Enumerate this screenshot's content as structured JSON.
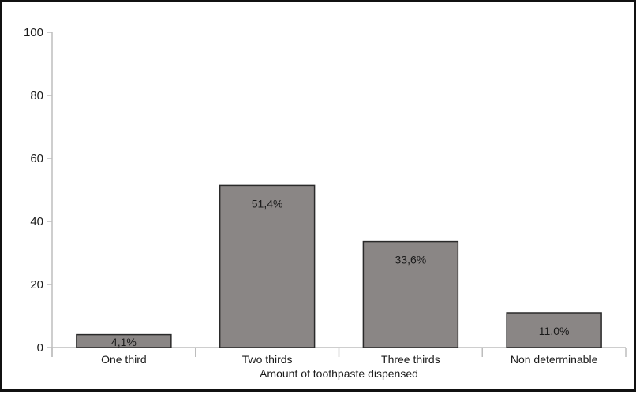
{
  "chart_data": {
    "type": "bar",
    "categories": [
      "One third",
      "Two thirds",
      "Three thirds",
      "Non determinable"
    ],
    "values": [
      4.1,
      51.4,
      33.6,
      11.0
    ],
    "data_labels": [
      "4,1%",
      "51,4%",
      "33,6%",
      "11,0%"
    ],
    "title": "",
    "xlabel": "Amount of toothpaste dispensed",
    "ylabel": "",
    "ylim": [
      0,
      100
    ],
    "yticks": [
      0,
      20,
      40,
      60,
      80,
      100
    ],
    "grid": false,
    "bar_color": "#8a8685",
    "bar_edge_color": "#2a2a2a",
    "axis_color": "#bdbdbd"
  }
}
